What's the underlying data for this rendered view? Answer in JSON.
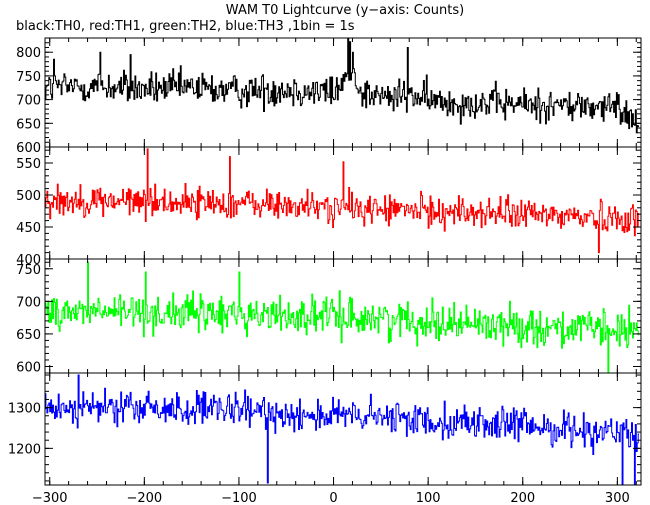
{
  "chart_data": {
    "type": "line",
    "title": "WAM T0 Lightcurve (y−axis: Counts)",
    "subtitle": "black:TH0, red:TH1, green:TH2, blue:TH3 ,1bin = 1s",
    "xlim": [
      -305,
      325
    ],
    "x_ticks": [
      -300,
      -200,
      -100,
      0,
      100,
      200,
      300
    ],
    "x_minor_step": 20,
    "panels": [
      {
        "name": "TH0",
        "color": "#000000",
        "ylim": [
          600,
          830
        ],
        "y_ticks": [
          600,
          650,
          700,
          750,
          800
        ],
        "y_minor_step": 10,
        "trend": [
          [
            -300,
            725
          ],
          [
            -250,
            728
          ],
          [
            -200,
            722
          ],
          [
            -150,
            725
          ],
          [
            -100,
            718
          ],
          [
            -50,
            722
          ],
          [
            0,
            715
          ],
          [
            10,
            738
          ],
          [
            20,
            760
          ],
          [
            30,
            715
          ],
          [
            60,
            703
          ],
          [
            80,
            712
          ],
          [
            100,
            697
          ],
          [
            150,
            693
          ],
          [
            200,
            690
          ],
          [
            250,
            687
          ],
          [
            300,
            682
          ],
          [
            320,
            658
          ]
        ],
        "noise": 32,
        "spikes": [
          [
            -296,
            785
          ],
          [
            -247,
            800
          ],
          [
            -215,
            795
          ],
          [
            15,
            828
          ],
          [
            17,
            822
          ],
          [
            20,
            800
          ],
          [
            78,
            810
          ]
        ]
      },
      {
        "name": "TH1",
        "color": "#ff0000",
        "ylim": [
          400,
          575
        ],
        "y_ticks": [
          400,
          450,
          500,
          550
        ],
        "y_minor_step": 10,
        "trend": [
          [
            -300,
            492
          ],
          [
            -200,
            490
          ],
          [
            -100,
            487
          ],
          [
            0,
            480
          ],
          [
            100,
            475
          ],
          [
            200,
            470
          ],
          [
            300,
            465
          ],
          [
            320,
            462
          ]
        ],
        "noise": 22,
        "spikes": [
          [
            -197,
            572
          ],
          [
            -110,
            560
          ],
          [
            10,
            552
          ],
          [
            280,
            410
          ]
        ]
      },
      {
        "name": "TH2",
        "color": "#00ff00",
        "ylim": [
          590,
          765
        ],
        "y_ticks": [
          600,
          650,
          700,
          750
        ],
        "y_minor_step": 10,
        "trend": [
          [
            -300,
            685
          ],
          [
            -200,
            683
          ],
          [
            -100,
            680
          ],
          [
            0,
            677
          ],
          [
            100,
            670
          ],
          [
            200,
            662
          ],
          [
            300,
            655
          ],
          [
            320,
            652
          ]
        ],
        "noise": 26,
        "spikes": [
          [
            -260,
            760
          ],
          [
            -199,
            745
          ],
          [
            -100,
            745
          ],
          [
            290,
            590
          ]
        ]
      },
      {
        "name": "TH3",
        "color": "#0000ff",
        "ylim": [
          1110,
          1385
        ],
        "y_ticks": [
          1200,
          1300
        ],
        "y_minor_step": 20,
        "trend": [
          [
            -300,
            1300
          ],
          [
            -200,
            1298
          ],
          [
            -100,
            1292
          ],
          [
            0,
            1280
          ],
          [
            100,
            1270
          ],
          [
            200,
            1255
          ],
          [
            300,
            1240
          ],
          [
            320,
            1235
          ]
        ],
        "noise": 38,
        "spikes": [
          [
            -270,
            1380
          ],
          [
            -70,
            1115
          ],
          [
            305,
            1110
          ],
          [
            318,
            1112
          ]
        ]
      }
    ]
  }
}
